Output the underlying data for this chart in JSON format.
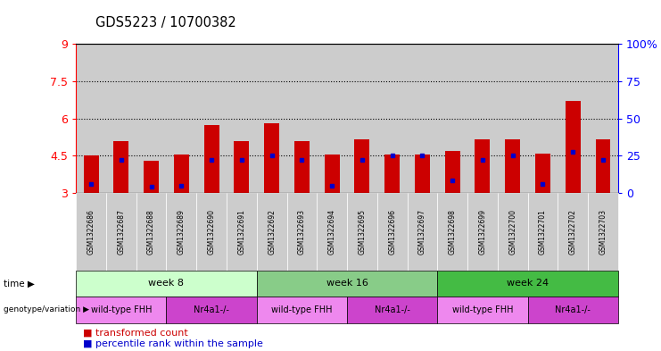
{
  "title": "GDS5223 / 10700382",
  "samples": [
    "GSM1322686",
    "GSM1322687",
    "GSM1322688",
    "GSM1322689",
    "GSM1322690",
    "GSM1322691",
    "GSM1322692",
    "GSM1322693",
    "GSM1322694",
    "GSM1322695",
    "GSM1322696",
    "GSM1322697",
    "GSM1322698",
    "GSM1322699",
    "GSM1322700",
    "GSM1322701",
    "GSM1322702",
    "GSM1322703"
  ],
  "bar_tops": [
    4.5,
    5.1,
    4.3,
    4.55,
    5.75,
    5.1,
    5.82,
    5.1,
    4.56,
    5.15,
    4.56,
    4.56,
    4.7,
    5.15,
    5.15,
    4.6,
    6.7,
    5.15
  ],
  "blue_positions": [
    3.35,
    4.35,
    3.25,
    3.3,
    4.35,
    4.35,
    4.5,
    4.35,
    3.3,
    4.35,
    4.5,
    4.5,
    3.5,
    4.35,
    4.5,
    3.35,
    4.65,
    4.35
  ],
  "bar_color": "#CC0000",
  "blue_color": "#0000CC",
  "ymin": 3,
  "ymax": 9,
  "yticks": [
    3,
    4.5,
    6,
    7.5,
    9
  ],
  "ytick_labels": [
    "3",
    "4.5",
    "6",
    "7.5",
    "9"
  ],
  "right_yticks": [
    0,
    25,
    50,
    75,
    100
  ],
  "right_ytick_labels": [
    "0",
    "25",
    "50",
    "75",
    "100%"
  ],
  "hlines": [
    4.5,
    6.0,
    7.5
  ],
  "time_groups": [
    {
      "label": "week 8",
      "start": 0,
      "end": 6,
      "color": "#ccffcc"
    },
    {
      "label": "week 16",
      "start": 6,
      "end": 12,
      "color": "#88cc88"
    },
    {
      "label": "week 24",
      "start": 12,
      "end": 18,
      "color": "#44bb44"
    }
  ],
  "geno_groups": [
    {
      "label": "wild-type FHH",
      "start": 0,
      "end": 3,
      "color": "#ee88ee"
    },
    {
      "label": "Nr4a1-/-",
      "start": 3,
      "end": 6,
      "color": "#cc44cc"
    },
    {
      "label": "wild-type FHH",
      "start": 6,
      "end": 9,
      "color": "#ee88ee"
    },
    {
      "label": "Nr4a1-/-",
      "start": 9,
      "end": 12,
      "color": "#cc44cc"
    },
    {
      "label": "wild-type FHH",
      "start": 12,
      "end": 15,
      "color": "#ee88ee"
    },
    {
      "label": "Nr4a1-/-",
      "start": 15,
      "end": 18,
      "color": "#cc44cc"
    }
  ],
  "bar_width": 0.5,
  "col_bg_color": "#cccccc",
  "bar_color_legend": "#CC0000",
  "blue_color_legend": "#0000CC"
}
